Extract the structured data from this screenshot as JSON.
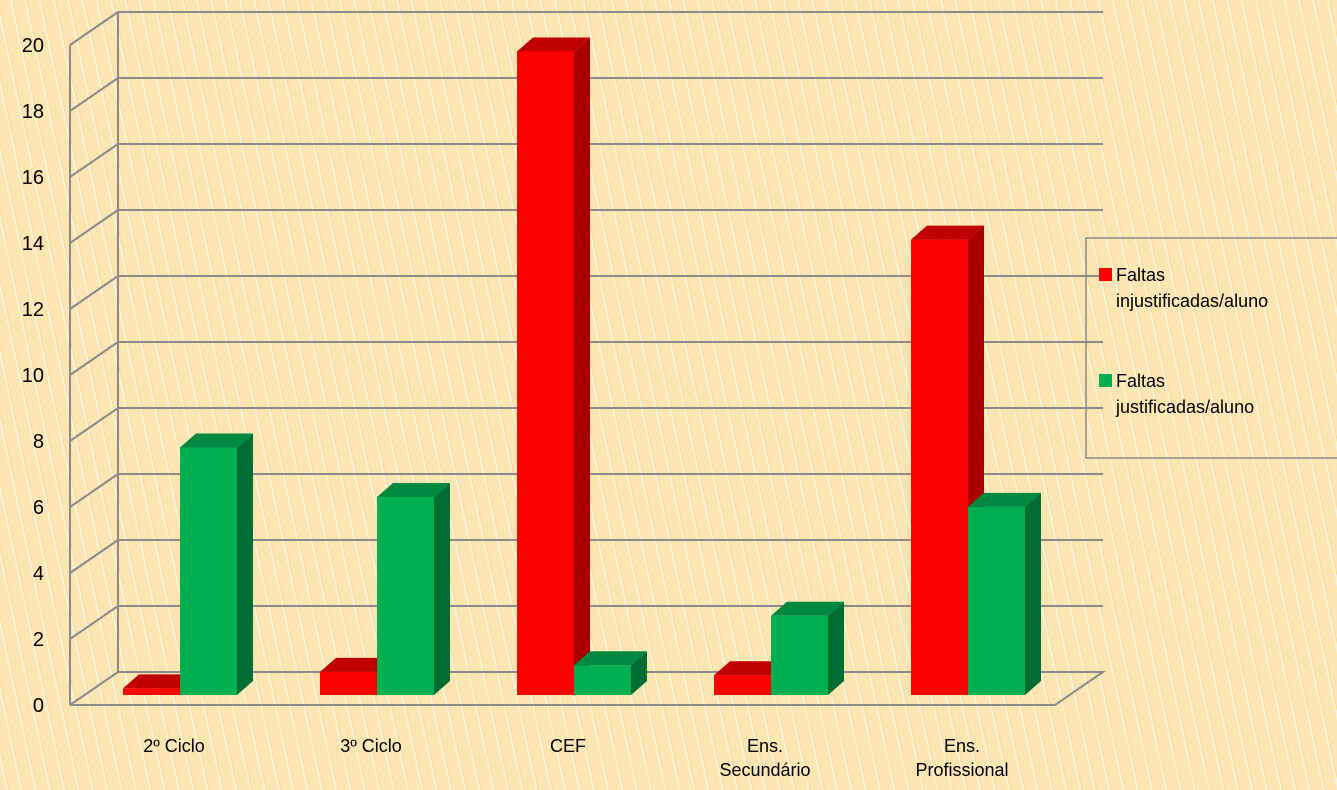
{
  "chart_data": {
    "type": "bar",
    "title": "",
    "xlabel": "",
    "ylabel": "",
    "ylim": [
      0,
      20
    ],
    "yticks": [
      "0",
      "2",
      "4",
      "6",
      "8",
      "10",
      "12",
      "14",
      "16",
      "18",
      "20"
    ],
    "categories": [
      [
        "2º Ciclo"
      ],
      [
        "3º Ciclo"
      ],
      [
        "CEF"
      ],
      [
        "Ens.",
        "Secundário"
      ],
      [
        "Ens.",
        "Profissional"
      ]
    ],
    "series": [
      {
        "name": "Faltas injustificadas/aluno",
        "legend_lines": [
          "Faltas",
          "injustificadas/aluno"
        ],
        "color": "#ff0000",
        "side_color": "#a80000",
        "top_color": "#c00000",
        "values": [
          0.2,
          0.7,
          19.5,
          0.6,
          13.8
        ]
      },
      {
        "name": "Faltas justificadas/aluno",
        "legend_lines": [
          "Faltas",
          "justificadas/aluno"
        ],
        "color": "#00b050",
        "side_color": "#006e32",
        "top_color": "#008a40",
        "values": [
          7.5,
          6.0,
          0.9,
          2.4,
          5.7
        ]
      }
    ],
    "grid": true,
    "legend_position": "right"
  }
}
